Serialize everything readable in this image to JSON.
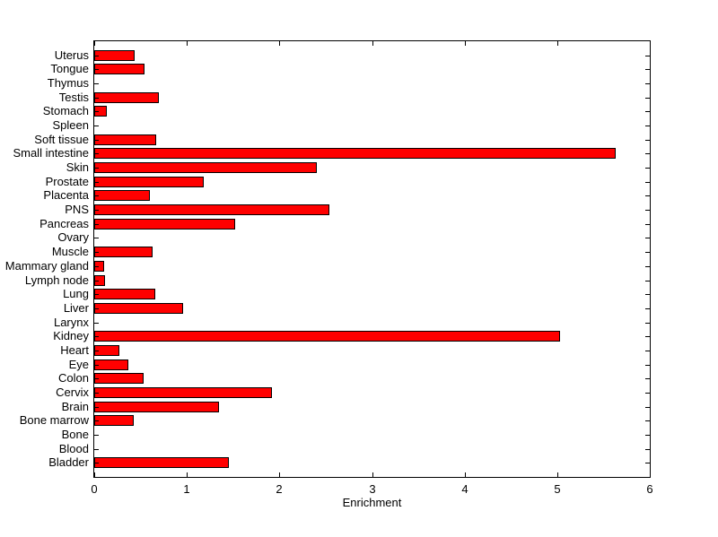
{
  "figure": {
    "background_color": "#FFFFFF",
    "bar_fill_color": "#FF0000",
    "bar_edge_color": "#000000",
    "axis_color": "#000000",
    "text_color": "#000000"
  },
  "chart_data": {
    "type": "bar",
    "orientation": "horizontal",
    "title": "",
    "xlabel": "Enrichment",
    "ylabel": "",
    "xlim": [
      0,
      6
    ],
    "x_ticks": [
      0,
      1,
      2,
      3,
      4,
      5,
      6
    ],
    "grid": false,
    "legend": null,
    "categories": [
      "Uterus",
      "Tongue",
      "Thymus",
      "Testis",
      "Stomach",
      "Spleen",
      "Soft tissue",
      "Small intestine",
      "Skin",
      "Prostate",
      "Placenta",
      "PNS",
      "Pancreas",
      "Ovary",
      "Muscle",
      "Mammary gland",
      "Lymph node",
      "Lung",
      "Liver",
      "Larynx",
      "Kidney",
      "Heart",
      "Eye",
      "Colon",
      "Cervix",
      "Brain",
      "Bone marrow",
      "Bone",
      "Blood",
      "Bladder"
    ],
    "values": [
      0.44,
      0.54,
      0,
      0.7,
      0.14,
      0,
      0.67,
      5.63,
      2.4,
      1.18,
      0.6,
      2.54,
      1.52,
      0,
      0.63,
      0.11,
      0.12,
      0.66,
      0.96,
      0,
      5.03,
      0.27,
      0.37,
      0.53,
      1.92,
      1.35,
      0.43,
      0,
      0,
      1.45
    ]
  }
}
